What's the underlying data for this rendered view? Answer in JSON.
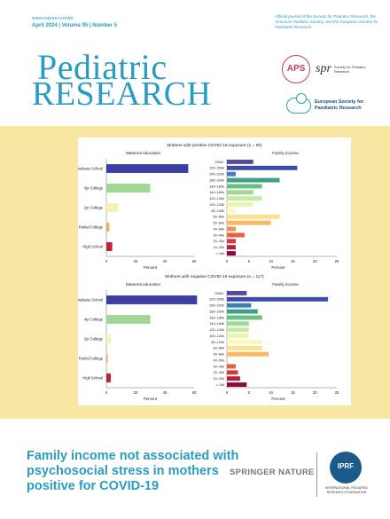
{
  "header": {
    "url": "www.nature.com/pr",
    "issue": "April 2024 | Volume 95 | Number 5",
    "tagline": "Official journal of the Society for Pediatric Research, the American Pediatric Society, and the European Society for Paediatric Research",
    "title_line1": "Pediatric",
    "title_line2": "RESEARCH"
  },
  "logos": {
    "aps": "APS",
    "spr_mark": "spr",
    "spr_text": "Society for Pediatric Research",
    "espr_text": "European Society for Paediatric Research",
    "iprf_mark": "IPRF",
    "iprf_text": "International Pediatric Research Foundation"
  },
  "footer": {
    "title": "Family income not associated with psychosocial stress in mothers positive for COVID-19",
    "publisher": "SPRINGER NATURE"
  },
  "colors": {
    "brand": "#2a9cc4",
    "band": "#f7e7a2"
  },
  "chart_data": [
    {
      "type": "bar",
      "title": "Mothers with positive COVID-19 exposure (n = 50)",
      "panels": [
        {
          "title": "Maternal education",
          "orientation": "horizontal",
          "categories": [
            "Graduate School",
            "4yr College",
            "2yr College",
            "Partial College",
            "High School"
          ],
          "values": [
            56,
            30,
            8,
            2,
            4
          ],
          "colors": [
            "#3b3ea7",
            "#9fd892",
            "#f4f2b0",
            "#f7a66b",
            "#c21f3a"
          ],
          "xlabel": "Percent",
          "xlim": [
            0,
            60
          ],
          "xticks": [
            "0",
            "20",
            "40",
            "60"
          ]
        },
        {
          "title": "Family income",
          "orientation": "horizontal",
          "categories": [
            "250k+",
            "220–250k",
            "200–220k",
            "180–200k",
            "160–180k",
            "140–160k",
            "120–140k",
            "100–120k",
            "80–100k",
            "60–80k",
            "50–60k",
            "40–50k",
            "30–40k",
            "20–30k",
            "10–20k",
            "< 10k"
          ],
          "values": [
            6,
            16,
            2,
            12,
            8,
            6,
            8,
            6,
            2,
            12,
            10,
            2,
            4,
            2,
            2,
            2
          ],
          "colors": [
            "#5a4a9c",
            "#3a4ea8",
            "#3f7fb8",
            "#3fa08a",
            "#6cc07e",
            "#9fd99a",
            "#c9eb9f",
            "#e8f5b0",
            "#fbf7c0",
            "#fde08d",
            "#fcb865",
            "#f68e4f",
            "#e8603d",
            "#d03b3b",
            "#b5213e",
            "#8e0a3d"
          ],
          "xlabel": "Percent",
          "xlim": [
            0,
            25
          ],
          "xticks": [
            "0",
            "5",
            "10",
            "15",
            "20",
            "25"
          ]
        }
      ]
    },
    {
      "type": "bar",
      "title": "Mothers with negative COVID-19 exposure (n = 117)",
      "panels": [
        {
          "title": "Maternal education",
          "orientation": "horizontal",
          "categories": [
            "Graduate School",
            "4yr College",
            "2yr College",
            "Partial College",
            "High School"
          ],
          "values": [
            62,
            30,
            3,
            1,
            3
          ],
          "colors": [
            "#3b3ea7",
            "#9fd892",
            "#f4f2b0",
            "#f7a66b",
            "#c21f3a"
          ],
          "xlabel": "Percent",
          "xlim": [
            0,
            60
          ],
          "xticks": [
            "0",
            "20",
            "40",
            "60"
          ]
        },
        {
          "title": "Family income",
          "orientation": "horizontal",
          "categories": [
            "250k+",
            "220–250k",
            "200–220k",
            "180–200k",
            "160–180k",
            "140–160k",
            "120–140k",
            "100–120k",
            "80–100k",
            "60–80k",
            "50–60k",
            "40–50k",
            "30–40k",
            "20–30k",
            "10–20k",
            "< 10k"
          ],
          "values": [
            4.5,
            23,
            5.5,
            7,
            8,
            5,
            5,
            5,
            8,
            8,
            9.5,
            0,
            2,
            2.5,
            3,
            4.5
          ],
          "colors": [
            "#5a4a9c",
            "#3a4ea8",
            "#3f7fb8",
            "#3fa08a",
            "#6cc07e",
            "#9fd99a",
            "#c9eb9f",
            "#e8f5b0",
            "#fbf7c0",
            "#fde08d",
            "#fcb865",
            "#f68e4f",
            "#e8603d",
            "#d03b3b",
            "#b5213e",
            "#8e0a3d"
          ],
          "xlabel": "Percent",
          "xlim": [
            0,
            25
          ],
          "xticks": [
            "0",
            "5",
            "10",
            "15",
            "20",
            "25"
          ]
        }
      ]
    }
  ]
}
